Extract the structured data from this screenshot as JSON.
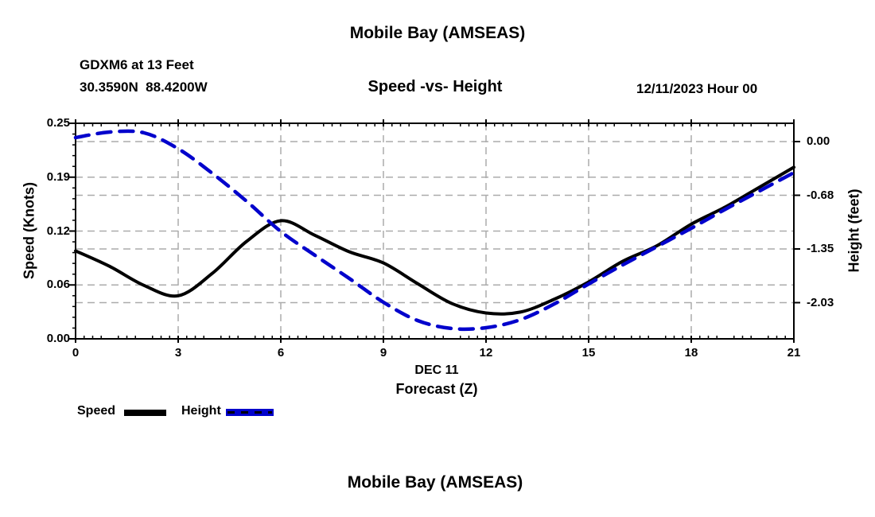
{
  "header": {
    "top_title": "Mobile Bay (AMSEAS)",
    "station_line1": "GDXM6 at 13 Feet",
    "station_line2": "30.3590N  88.4200W",
    "subtitle": "Speed -vs- Height",
    "datetime": "12/11/2023 Hour 00"
  },
  "footer_title": "Mobile Bay (AMSEAS)",
  "legend": {
    "items": [
      {
        "label": "Speed",
        "color": "#000000",
        "style": "solid"
      },
      {
        "label": "Height",
        "color": "#0202cc",
        "style": "dashed"
      }
    ]
  },
  "colors": {
    "speed_line": "#000000",
    "height_line": "#0202cc",
    "grid": "#ababab",
    "axis": "#000000",
    "background": "#ffffff"
  },
  "chart_data": {
    "type": "line",
    "title": "Mobile Bay (AMSEAS)",
    "subtitle": "Speed -vs- Height",
    "xlabel_line1": "DEC 11",
    "xlabel_line2": "Forecast (Z)",
    "grid": true,
    "legend_position": "bottom-left",
    "x_units": "hours (Z)",
    "x": [
      0,
      1,
      2,
      3,
      4,
      5,
      6,
      7,
      8,
      9,
      10,
      11,
      12,
      13,
      14,
      15,
      16,
      17,
      18,
      19,
      20,
      21
    ],
    "x_ticks": [
      0,
      3,
      6,
      9,
      12,
      15,
      18,
      21
    ],
    "xlim": [
      0,
      21
    ],
    "left_axis": {
      "label": "Speed (Knots)",
      "range": [
        0,
        0.25
      ],
      "tick_values": [
        0,
        0.0625,
        0.125,
        0.1875,
        0.25
      ],
      "tick_labels": [
        "0.00",
        "0.06",
        "0.12",
        "0.19",
        "0.25"
      ]
    },
    "right_axis": {
      "label": "Height (feet)",
      "range": [
        -2.48,
        0.23
      ],
      "tick_values": [
        0,
        -0.675,
        -1.35,
        -2.025
      ],
      "tick_labels": [
        "0.00",
        "-0.68",
        "-1.35",
        "-2.03"
      ]
    },
    "series": [
      {
        "name": "Speed",
        "axis": "left",
        "color": "#000000",
        "style": "solid",
        "values": [
          0.102,
          0.084,
          0.062,
          0.05,
          0.076,
          0.113,
          0.137,
          0.12,
          0.101,
          0.088,
          0.064,
          0.041,
          0.03,
          0.031,
          0.046,
          0.066,
          0.09,
          0.108,
          0.133,
          0.153,
          0.176,
          0.199
        ]
      },
      {
        "name": "Height",
        "axis": "right",
        "color": "#0202cc",
        "style": "dashed",
        "values": [
          0.05,
          0.12,
          0.11,
          -0.09,
          -0.4,
          -0.75,
          -1.13,
          -1.43,
          -1.72,
          -2.02,
          -2.25,
          -2.35,
          -2.34,
          -2.24,
          -2.04,
          -1.79,
          -1.55,
          -1.32,
          -1.09,
          -0.85,
          -0.62,
          -0.39
        ]
      }
    ]
  }
}
